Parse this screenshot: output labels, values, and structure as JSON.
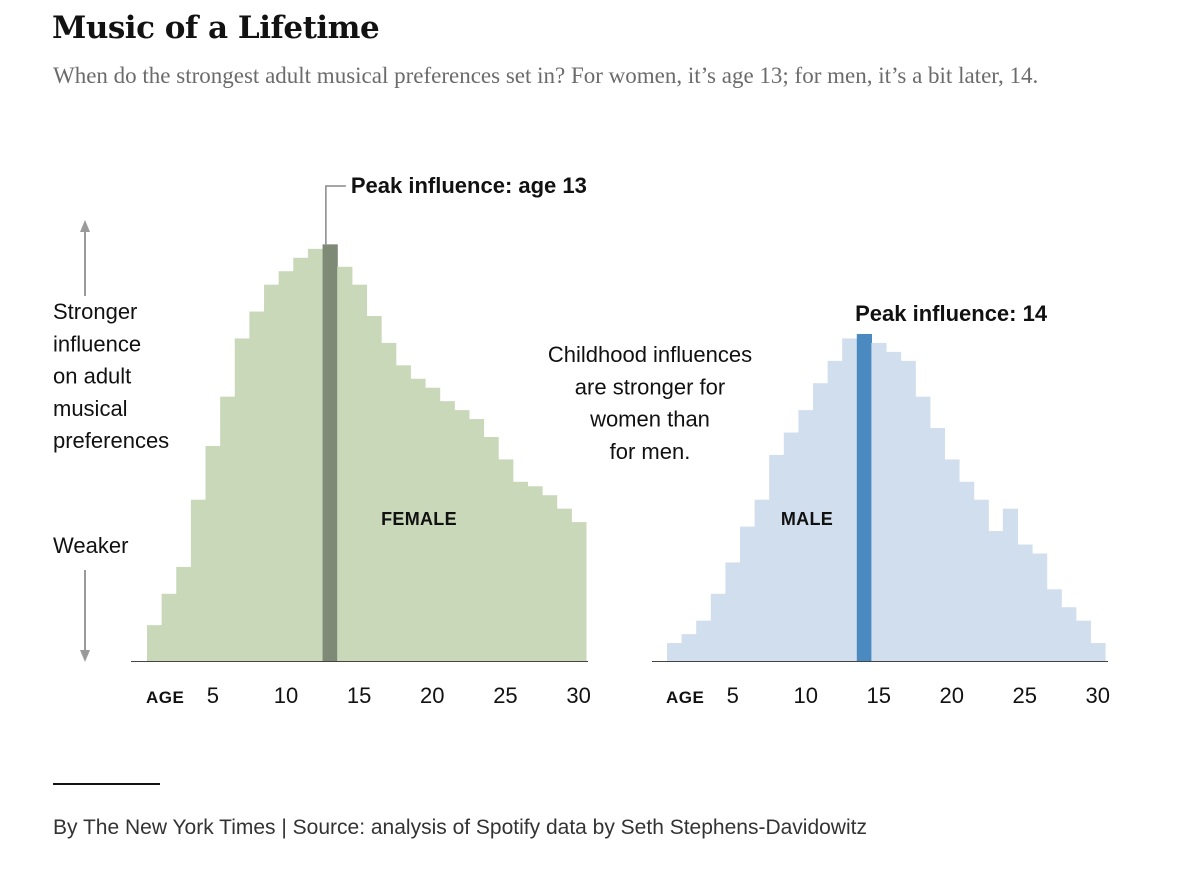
{
  "header": {
    "title": "Music of a Lifetime",
    "subtitle": "When do the strongest adult musical preferences set in? For women, it’s age 13; for men, it’s a bit later, 14."
  },
  "footer": {
    "credit": "By The New York Times | Source: analysis of Spotify data by Seth Stephens-Davidowitz"
  },
  "y_legend": {
    "top_lines": [
      "Stronger",
      "influence",
      "on adult",
      "musical",
      "preferences"
    ],
    "bottom": "Weaker"
  },
  "annotation": {
    "lines": [
      "Childhood influences",
      "are stronger for",
      "women than",
      "for men."
    ]
  },
  "colors": {
    "female_bar": "#c8d8b9",
    "female_peak": "#7e8a76",
    "male_bar": "#d1deed",
    "male_peak": "#4a8ac0",
    "text": "#111111",
    "axis": "#444444",
    "arrow": "#9a9a9a"
  },
  "chart_data": [
    {
      "type": "bar",
      "name": "FEMALE",
      "xlabel": "AGE",
      "ylabel": "Influence on adult musical preferences (relative)",
      "x": [
        1,
        2,
        3,
        4,
        5,
        6,
        7,
        8,
        9,
        10,
        11,
        12,
        13,
        14,
        15,
        16,
        17,
        18,
        19,
        20,
        21,
        22,
        23,
        24,
        25,
        26,
        27,
        28,
        29,
        30
      ],
      "values": [
        8,
        15,
        21,
        36,
        48,
        59,
        72,
        78,
        84,
        87,
        90,
        92,
        93,
        88,
        84,
        77,
        71,
        66,
        63,
        61,
        58,
        56,
        54,
        50,
        45,
        40,
        39,
        37,
        34,
        31
      ],
      "peak_age": 13,
      "peak_label": "Peak influence: age 13",
      "xticks": [
        5,
        10,
        15,
        20,
        25,
        30
      ],
      "ylim": [
        0,
        100
      ]
    },
    {
      "type": "bar",
      "name": "MALE",
      "xlabel": "AGE",
      "ylabel": "Influence on adult musical preferences (relative)",
      "x": [
        1,
        2,
        3,
        4,
        5,
        6,
        7,
        8,
        9,
        10,
        11,
        12,
        13,
        14,
        15,
        16,
        17,
        18,
        19,
        20,
        21,
        22,
        23,
        24,
        25,
        26,
        27,
        28,
        29,
        30
      ],
      "values": [
        4,
        6,
        9,
        15,
        22,
        30,
        36,
        46,
        51,
        56,
        62,
        67,
        72,
        73,
        71,
        69,
        67,
        59,
        52,
        45,
        40,
        36,
        29,
        34,
        26,
        24,
        16,
        12,
        9,
        4
      ],
      "peak_age": 14,
      "peak_label": "Peak influence: 14",
      "xticks": [
        5,
        10,
        15,
        20,
        25,
        30
      ],
      "ylim": [
        0,
        100
      ]
    }
  ]
}
